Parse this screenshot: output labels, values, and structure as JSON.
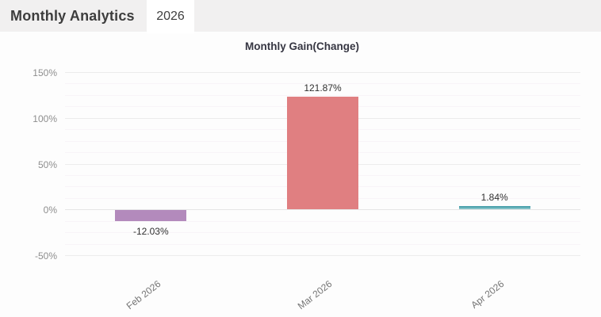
{
  "header": {
    "title": "Monthly Analytics",
    "tab_label": "2026"
  },
  "chart_data": {
    "type": "bar",
    "title": "Monthly Gain(Change)",
    "categories": [
      "Feb 2026",
      "Mar 2026",
      "Apr 2026"
    ],
    "values": [
      -12.03,
      121.87,
      1.84
    ],
    "value_labels": [
      "-12.03%",
      "121.87%",
      "1.84%"
    ],
    "bar_colors": [
      "#b38abc",
      "#e07f81",
      "#7fc0c6"
    ],
    "bar_edge_colors": [
      "#b38abc",
      "#e07f81",
      "#4da3ad"
    ],
    "xlabel": "",
    "ylabel": "",
    "ylim": [
      -50,
      150
    ],
    "ytick_values": [
      150,
      100,
      50,
      0,
      -50
    ],
    "ytick_labels": [
      "150%",
      "100%",
      "50%",
      "0%",
      "-50%"
    ],
    "minor_grid_step": 12.5,
    "grid": true,
    "legend_position": "none",
    "xtick_rotation_deg": -38
  },
  "colors": {
    "page_bg": "#fdfdfd",
    "topbar_bg": "#f1f0f0",
    "tab_bg": "#ffffff",
    "header_text": "#3d3d3d",
    "title_text": "#363642",
    "major_grid": "#ececec",
    "minor_grid": "#f8f4f8",
    "ytick_text": "#8e8e8e",
    "xtick_text": "#757575",
    "value_label_text": "#303030"
  }
}
